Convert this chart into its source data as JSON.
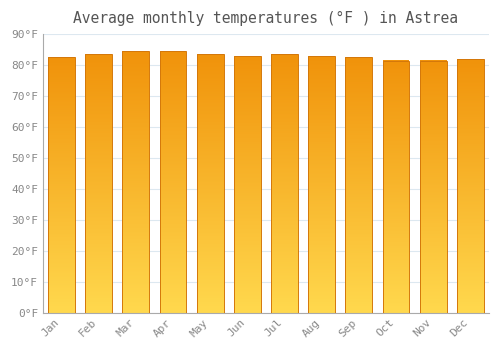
{
  "title": "Average monthly temperatures (°F ) in Astrea",
  "months": [
    "Jan",
    "Feb",
    "Mar",
    "Apr",
    "May",
    "Jun",
    "Jul",
    "Aug",
    "Sep",
    "Oct",
    "Nov",
    "Dec"
  ],
  "values": [
    82.5,
    83.5,
    84.5,
    84.5,
    83.5,
    83.0,
    83.5,
    83.0,
    82.5,
    81.5,
    81.5,
    82.0
  ],
  "bar_color_bottom": "#FFD84D",
  "bar_color_top": "#F0920A",
  "bar_edge_color": "#D4780A",
  "background_color": "#ffffff",
  "grid_color": "#dde8f0",
  "text_color": "#888888",
  "title_color": "#555555",
  "ylim": [
    0,
    90
  ],
  "yticks": [
    0,
    10,
    20,
    30,
    40,
    50,
    60,
    70,
    80,
    90
  ],
  "title_fontsize": 10.5,
  "tick_fontsize": 8,
  "bar_width": 0.72
}
